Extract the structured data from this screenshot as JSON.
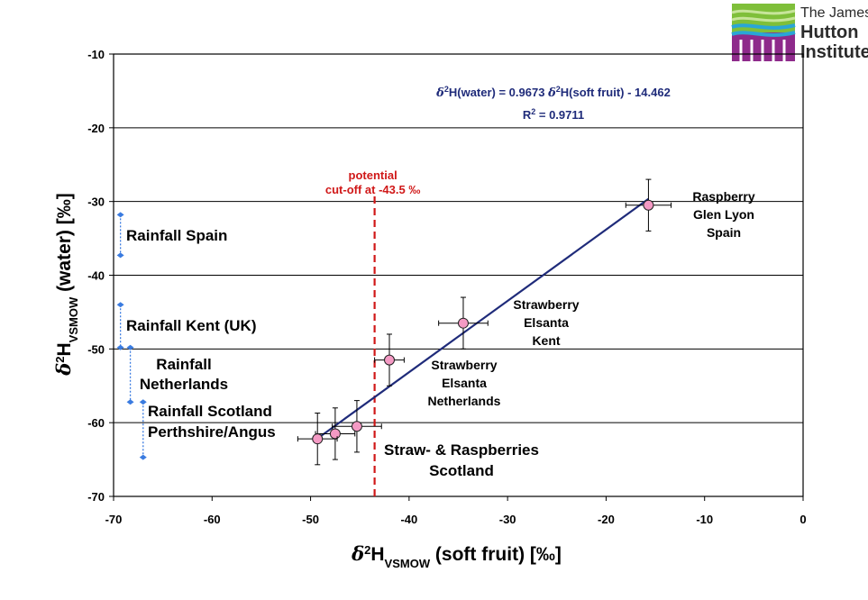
{
  "logo": {
    "line1": "The James",
    "line2": "Hutton",
    "line3": "Institute"
  },
  "chart_data": {
    "type": "scatter",
    "title": "",
    "xlabel": {
      "prefix": "δ",
      "sup": "2",
      "main": "H",
      "sub": "VSMOW",
      "suffix": " (soft fruit) [‰]"
    },
    "ylabel": {
      "prefix": "δ",
      "sup": "2",
      "main": "H",
      "sub": "VSMOW",
      "suffix": " (water) [‰]"
    },
    "xlim": [
      -70,
      0
    ],
    "ylim": [
      -70,
      -10
    ],
    "xticks": [
      -70,
      -60,
      -50,
      -40,
      -30,
      -20,
      -10,
      0
    ],
    "yticks": [
      -10,
      -20,
      -30,
      -40,
      -50,
      -60,
      -70
    ],
    "grid": "horizontal",
    "colors": {
      "points": "#f49ac4",
      "regression": "#1f2b7a",
      "cutoff": "#d01818",
      "rainfall": "#3a7be0"
    },
    "points": [
      {
        "x": -15.7,
        "y": -30.5,
        "xerr": 2.3,
        "yerr": 3.5
      },
      {
        "x": -34.5,
        "y": -46.5,
        "xerr": 2.5,
        "yerr": 3.5
      },
      {
        "x": -42.0,
        "y": -51.5,
        "xerr": 1.5,
        "yerr": 3.5
      },
      {
        "x": -45.3,
        "y": -60.5,
        "xerr": 2.5,
        "yerr": 3.5
      },
      {
        "x": -47.5,
        "y": -61.5,
        "xerr": 2.0,
        "yerr": 3.5
      },
      {
        "x": -49.3,
        "y": -62.2,
        "xerr": 2.0,
        "yerr": 3.5
      }
    ],
    "regression": {
      "x_range": [
        -49.3,
        -15.7
      ],
      "slope": 0.9673,
      "intercept": -14.462,
      "equation": {
        "a": "δ",
        "b": "2",
        "c": "H(water) = 0.9673 ",
        "d": "δ",
        "e": "2",
        "f": "H(soft fruit) - 14.462"
      },
      "r2": {
        "a": "R",
        "b": "2",
        "c": " = 0.9711"
      }
    },
    "cutoff": {
      "x": -43.5,
      "label_line1": "potential",
      "label_line2": "cut-off at -43.5 ‰"
    },
    "rainfall_ranges": [
      {
        "x": -69.3,
        "y_top": -31.8,
        "y_bottom": -37.3,
        "label": [
          "Rainfall Spain"
        ]
      },
      {
        "x": -69.3,
        "y_top": -44.0,
        "y_bottom": -49.8,
        "label": [
          "Rainfall Kent (UK)"
        ]
      },
      {
        "x": -68.3,
        "y_top": -49.8,
        "y_bottom": -57.2,
        "label": [
          "Rainfall",
          "Netherlands"
        ]
      },
      {
        "x": -67.0,
        "y_top": -57.2,
        "y_bottom": -64.7,
        "label": [
          "Rainfall Scotland",
          "Perthshire/Angus"
        ]
      }
    ],
    "annotations": [
      {
        "lines": [
          "Raspberry",
          "Glen Lyon",
          "Spain"
        ]
      },
      {
        "lines": [
          "Strawberry",
          "Elsanta",
          "Kent"
        ]
      },
      {
        "lines": [
          "Strawberry",
          "Elsanta",
          "Netherlands"
        ]
      },
      {
        "lines": [
          "Straw- & Raspberries",
          "Scotland"
        ]
      }
    ]
  }
}
